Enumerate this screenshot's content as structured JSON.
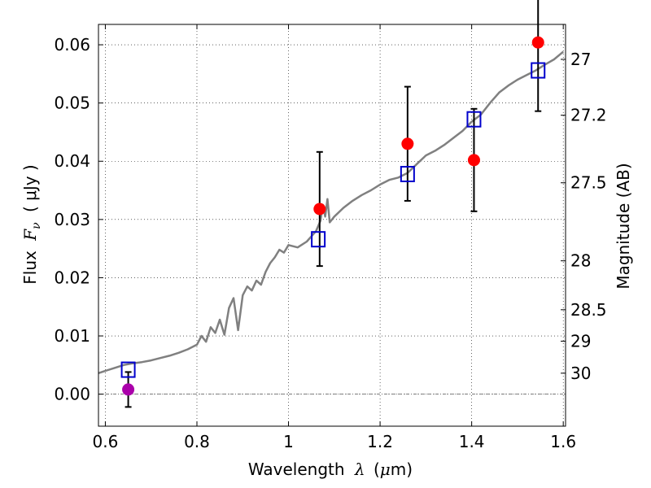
{
  "chart_data": {
    "type": "scatter",
    "xlabel_prefix": "Wavelength",
    "xlabel_symbol": "λ",
    "xlabel_unit_open": "(",
    "xlabel_unit_mu": "μ",
    "xlabel_unit_rest": "m)",
    "ylabel_prefix": "Flux",
    "ylabel_symbol": "F",
    "ylabel_subscript": "ν",
    "ylabel_unit": "( μJy )",
    "y2label": "Magnitude (AB)",
    "xlim": [
      0.585,
      1.605
    ],
    "ylim": [
      -0.0055,
      0.0635
    ],
    "grid": true,
    "x_ticks": [
      0.6,
      0.8,
      1.0,
      1.2,
      1.4,
      1.6
    ],
    "x_tick_labels": [
      "0.6",
      "0.8",
      "1",
      "1.2",
      "1.4",
      "1.6"
    ],
    "y_ticks": [
      0.0,
      0.01,
      0.02,
      0.03,
      0.04,
      0.05,
      0.06
    ],
    "y_tick_labels": [
      "0.00",
      "0.01",
      "0.02",
      "0.03",
      "0.04",
      "0.05",
      "0.06"
    ],
    "y2_ticks": [
      {
        "label": "27",
        "flux": 0.0575
      },
      {
        "label": "27.2",
        "flux": 0.0479
      },
      {
        "label": "27.5",
        "flux": 0.0363
      },
      {
        "label": "28",
        "flux": 0.0229
      },
      {
        "label": "28.5",
        "flux": 0.0145
      },
      {
        "label": "29",
        "flux": 0.0091
      },
      {
        "label": "30",
        "flux": 0.0036
      }
    ],
    "series": [
      {
        "kind": "template",
        "color": "#808080",
        "points": [
          [
            0.585,
            0.0036
          ],
          [
            0.6,
            0.004
          ],
          [
            0.62,
            0.0045
          ],
          [
            0.64,
            0.005
          ],
          [
            0.66,
            0.0053
          ],
          [
            0.68,
            0.0055
          ],
          [
            0.7,
            0.0058
          ],
          [
            0.72,
            0.0062
          ],
          [
            0.74,
            0.0066
          ],
          [
            0.76,
            0.0071
          ],
          [
            0.78,
            0.0077
          ],
          [
            0.8,
            0.0085
          ],
          [
            0.81,
            0.01
          ],
          [
            0.82,
            0.009
          ],
          [
            0.83,
            0.0115
          ],
          [
            0.84,
            0.0105
          ],
          [
            0.85,
            0.0128
          ],
          [
            0.86,
            0.0102
          ],
          [
            0.87,
            0.0148
          ],
          [
            0.88,
            0.0165
          ],
          [
            0.89,
            0.011
          ],
          [
            0.9,
            0.017
          ],
          [
            0.91,
            0.0185
          ],
          [
            0.92,
            0.0178
          ],
          [
            0.93,
            0.0195
          ],
          [
            0.94,
            0.0188
          ],
          [
            0.95,
            0.021
          ],
          [
            0.96,
            0.0225
          ],
          [
            0.97,
            0.0235
          ],
          [
            0.98,
            0.0248
          ],
          [
            0.99,
            0.0243
          ],
          [
            1.0,
            0.0256
          ],
          [
            1.02,
            0.0252
          ],
          [
            1.04,
            0.0262
          ],
          [
            1.06,
            0.028
          ],
          [
            1.07,
            0.0298
          ],
          [
            1.075,
            0.0325
          ],
          [
            1.08,
            0.0305
          ],
          [
            1.085,
            0.0335
          ],
          [
            1.09,
            0.0295
          ],
          [
            1.1,
            0.0305
          ],
          [
            1.12,
            0.032
          ],
          [
            1.14,
            0.0332
          ],
          [
            1.16,
            0.0342
          ],
          [
            1.18,
            0.035
          ],
          [
            1.2,
            0.036
          ],
          [
            1.22,
            0.0368
          ],
          [
            1.24,
            0.0372
          ],
          [
            1.26,
            0.038
          ],
          [
            1.28,
            0.0395
          ],
          [
            1.3,
            0.041
          ],
          [
            1.32,
            0.0418
          ],
          [
            1.34,
            0.0428
          ],
          [
            1.36,
            0.044
          ],
          [
            1.38,
            0.0452
          ],
          [
            1.4,
            0.0468
          ],
          [
            1.42,
            0.048
          ],
          [
            1.44,
            0.05
          ],
          [
            1.46,
            0.0518
          ],
          [
            1.48,
            0.053
          ],
          [
            1.5,
            0.054
          ],
          [
            1.52,
            0.0548
          ],
          [
            1.54,
            0.0556
          ],
          [
            1.56,
            0.0566
          ],
          [
            1.58,
            0.0575
          ],
          [
            1.6,
            0.0588
          ]
        ]
      },
      {
        "kind": "model-squares",
        "color": "#0000cc",
        "points": [
          [
            0.65,
            0.0042
          ],
          [
            1.065,
            0.0266
          ],
          [
            1.26,
            0.0378
          ],
          [
            1.405,
            0.0472
          ],
          [
            1.545,
            0.0556
          ]
        ]
      },
      {
        "kind": "observed",
        "points": [
          {
            "x": 0.65,
            "y": 0.0008,
            "err": 0.003,
            "color": "#aa00aa"
          },
          {
            "x": 1.068,
            "y": 0.0318,
            "err": 0.0098,
            "color": "#ff0000"
          },
          {
            "x": 1.26,
            "y": 0.043,
            "err": 0.0098,
            "color": "#ff0000"
          },
          {
            "x": 1.405,
            "y": 0.0402,
            "err": 0.0088,
            "color": "#ff0000"
          },
          {
            "x": 1.545,
            "y": 0.0604,
            "err": 0.0118,
            "color": "#ff0000"
          }
        ]
      }
    ]
  }
}
